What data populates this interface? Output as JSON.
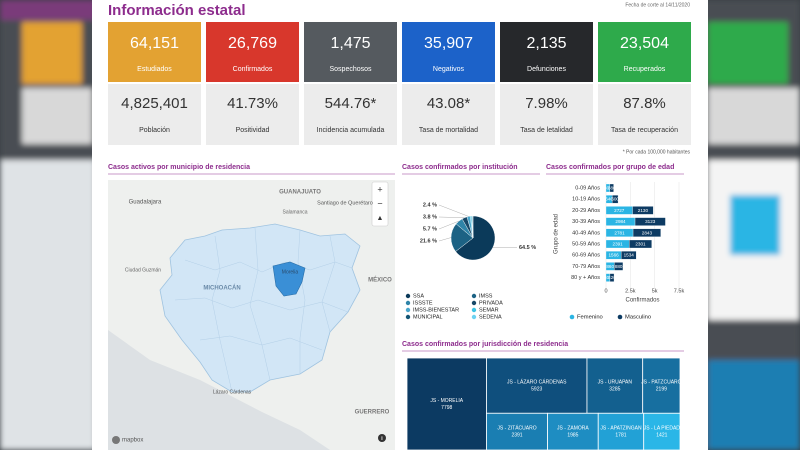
{
  "header": {
    "title": "Información estatal",
    "date": "Fecha de corte al 14/11/2020",
    "note": "* Por cada 100,000 habitantes"
  },
  "stats": [
    {
      "value": "64,151",
      "label": "Estudiados",
      "color": "#e3a232"
    },
    {
      "value": "26,769",
      "label": "Confirmados",
      "color": "#d8372c"
    },
    {
      "value": "1,475",
      "label": "Sospechosos",
      "color": "#555a5f"
    },
    {
      "value": "35,907",
      "label": "Negativos",
      "color": "#1c62c9"
    },
    {
      "value": "2,135",
      "label": "Defunciones",
      "color": "#26282b"
    },
    {
      "value": "23,504",
      "label": "Recuperados",
      "color": "#2eaa4b"
    }
  ],
  "indicators": [
    {
      "value": "4,825,401",
      "label": "Población"
    },
    {
      "value": "41.73%",
      "label": "Positividad"
    },
    {
      "value": "544.76*",
      "label": "Incidencia acumulada"
    },
    {
      "value": "43.08*",
      "label": "Tasa de mortalidad"
    },
    {
      "value": "7.98%",
      "label": "Tasa de letalidad"
    },
    {
      "value": "87.8%",
      "label": "Tasa de recuperación"
    }
  ],
  "map": {
    "title": "Casos activos por municipio de residencia",
    "labels": [
      "GUANAJUATO",
      "Guadalajara",
      "Santiago de Querétaro",
      "Salamanca",
      "Ciudad Guzmán",
      "MICHOACÁN",
      "Morelia",
      "MÉXICO",
      "GUERRERO",
      "Lázaro Cárdenas"
    ],
    "attribution": "mapbox"
  },
  "chart_data": [
    {
      "type": "pie",
      "title": "Casos confirmados por institución",
      "categories": [
        "SSA",
        "IMSS",
        "ISSSTE",
        "PRIVADA",
        "IMSS-BIENESTAR",
        "SEMAR",
        "MUNICIPAL",
        "SEDENA"
      ],
      "values": [
        64.5,
        21.6,
        5.7,
        3.8,
        2.4,
        1.0,
        0.6,
        0.4
      ],
      "value_labels": [
        "64.5 %",
        "21.6 %",
        "5.7 %",
        "3.8 %",
        "2.4 %",
        null,
        null,
        null
      ],
      "colors": [
        "#0b3a5a",
        "#1c6284",
        "#2f84a8",
        "#174868",
        "#4aa6cc",
        "#3cc3e3",
        "#135575",
        "#6cd3f2"
      ]
    },
    {
      "type": "bar",
      "title": "Casos confirmados por grupo de edad",
      "orientation": "horizontal",
      "stacked": true,
      "categories": [
        "0-09 Años",
        "10-19 Años",
        "20-29 Años",
        "30-39 Años",
        "40-49 Años",
        "50-59 Años",
        "60-69 Años",
        "70-79 Años",
        "80 y + Años"
      ],
      "series": [
        {
          "name": "Femenino",
          "color": "#2bb5e4",
          "values": [
            400,
            640,
            2727,
            2984,
            2781,
            2391,
            1566,
            860,
            405
          ]
        },
        {
          "name": "Masculino",
          "color": "#0d3b63",
          "values": [
            380,
            600,
            2130,
            3123,
            2843,
            2301,
            1534,
            880,
            420
          ]
        }
      ],
      "xlim": [
        0,
        7500
      ],
      "xticks": [
        0,
        {
          "value": 2500,
          "label": "2.5k"
        },
        {
          "value": 5000,
          "label": "5k"
        },
        {
          "value": 7500,
          "label": "7.5k"
        }
      ],
      "xlabel": "Confirmados",
      "ylabel": "Grupo de edad",
      "grid": true
    },
    {
      "type": "treemap",
      "title": "Casos confirmados por jurisdicción de residencia",
      "categories": [
        "JS - MORELIA",
        "JS - LÁZARO CÁRDENAS",
        "JS - URUAPAN",
        "JS - PATZCUARO",
        "JS - ZITÁCUARO",
        "JS - ZAMORA",
        "JS - APATZINGAN",
        "JS - LA PIEDAD"
      ],
      "values": [
        7798,
        5923,
        3285,
        2199,
        2391,
        1985,
        1781,
        1421
      ],
      "colors": [
        "#0c3a62",
        "#0f4f7d",
        "#13608f",
        "#176fa0",
        "#1a7eb2",
        "#1e8dc2",
        "#22a1d6",
        "#2ab6e7"
      ]
    }
  ]
}
